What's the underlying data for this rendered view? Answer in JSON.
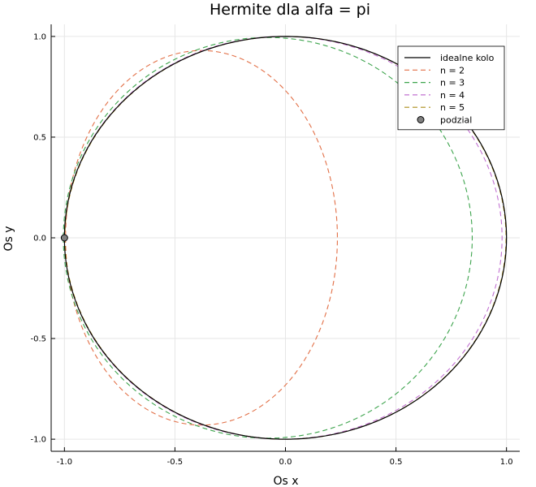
{
  "chart_data": {
    "type": "line",
    "title": "Hermite dla alfa = pi",
    "xlabel": "Os x",
    "ylabel": "Os y",
    "xlim": [
      -1.06,
      1.06
    ],
    "ylim": [
      -1.06,
      1.06
    ],
    "x_ticks": [
      -1.0,
      -0.5,
      0.0,
      0.5,
      1.0
    ],
    "x_tick_labels": [
      "-1.0",
      "-0.5",
      "0.0",
      "0.5",
      "1.0"
    ],
    "y_ticks": [
      -1.0,
      -0.5,
      0.0,
      0.5,
      1.0
    ],
    "y_tick_labels": [
      "-1.0",
      "-0.5",
      "0.0",
      "0.5",
      "1.0"
    ],
    "grid": true,
    "legend_position": "top-right",
    "series": [
      {
        "name": "idealne kolo",
        "color": "#000000",
        "style": "solid",
        "shape": {
          "cx": 0.0,
          "cy": 0.0,
          "rx": 1.0,
          "ry": 1.0
        }
      },
      {
        "name": "n = 2",
        "color": "#e26f46",
        "style": "dashed",
        "shape": {
          "cx": -0.38,
          "cy": 0.0,
          "rx": 0.615,
          "ry": 0.93
        }
      },
      {
        "name": "n = 3",
        "color": "#3da44d",
        "style": "dashed",
        "shape": {
          "cx": -0.08,
          "cy": 0.0,
          "rx": 0.925,
          "ry": 0.995
        }
      },
      {
        "name": "n = 4",
        "color": "#c271d2",
        "style": "dashed",
        "shape": {
          "cx": -0.01,
          "cy": 0.0,
          "rx": 0.99,
          "ry": 1.0
        }
      },
      {
        "name": "n = 5",
        "color": "#ac8d18",
        "style": "dashed",
        "shape": {
          "cx": 0.0,
          "cy": 0.0,
          "rx": 0.998,
          "ry": 1.0
        }
      }
    ],
    "points": {
      "name": "podzial",
      "color": "#808080",
      "x": [
        -1.0
      ],
      "y": [
        0.0
      ]
    }
  }
}
